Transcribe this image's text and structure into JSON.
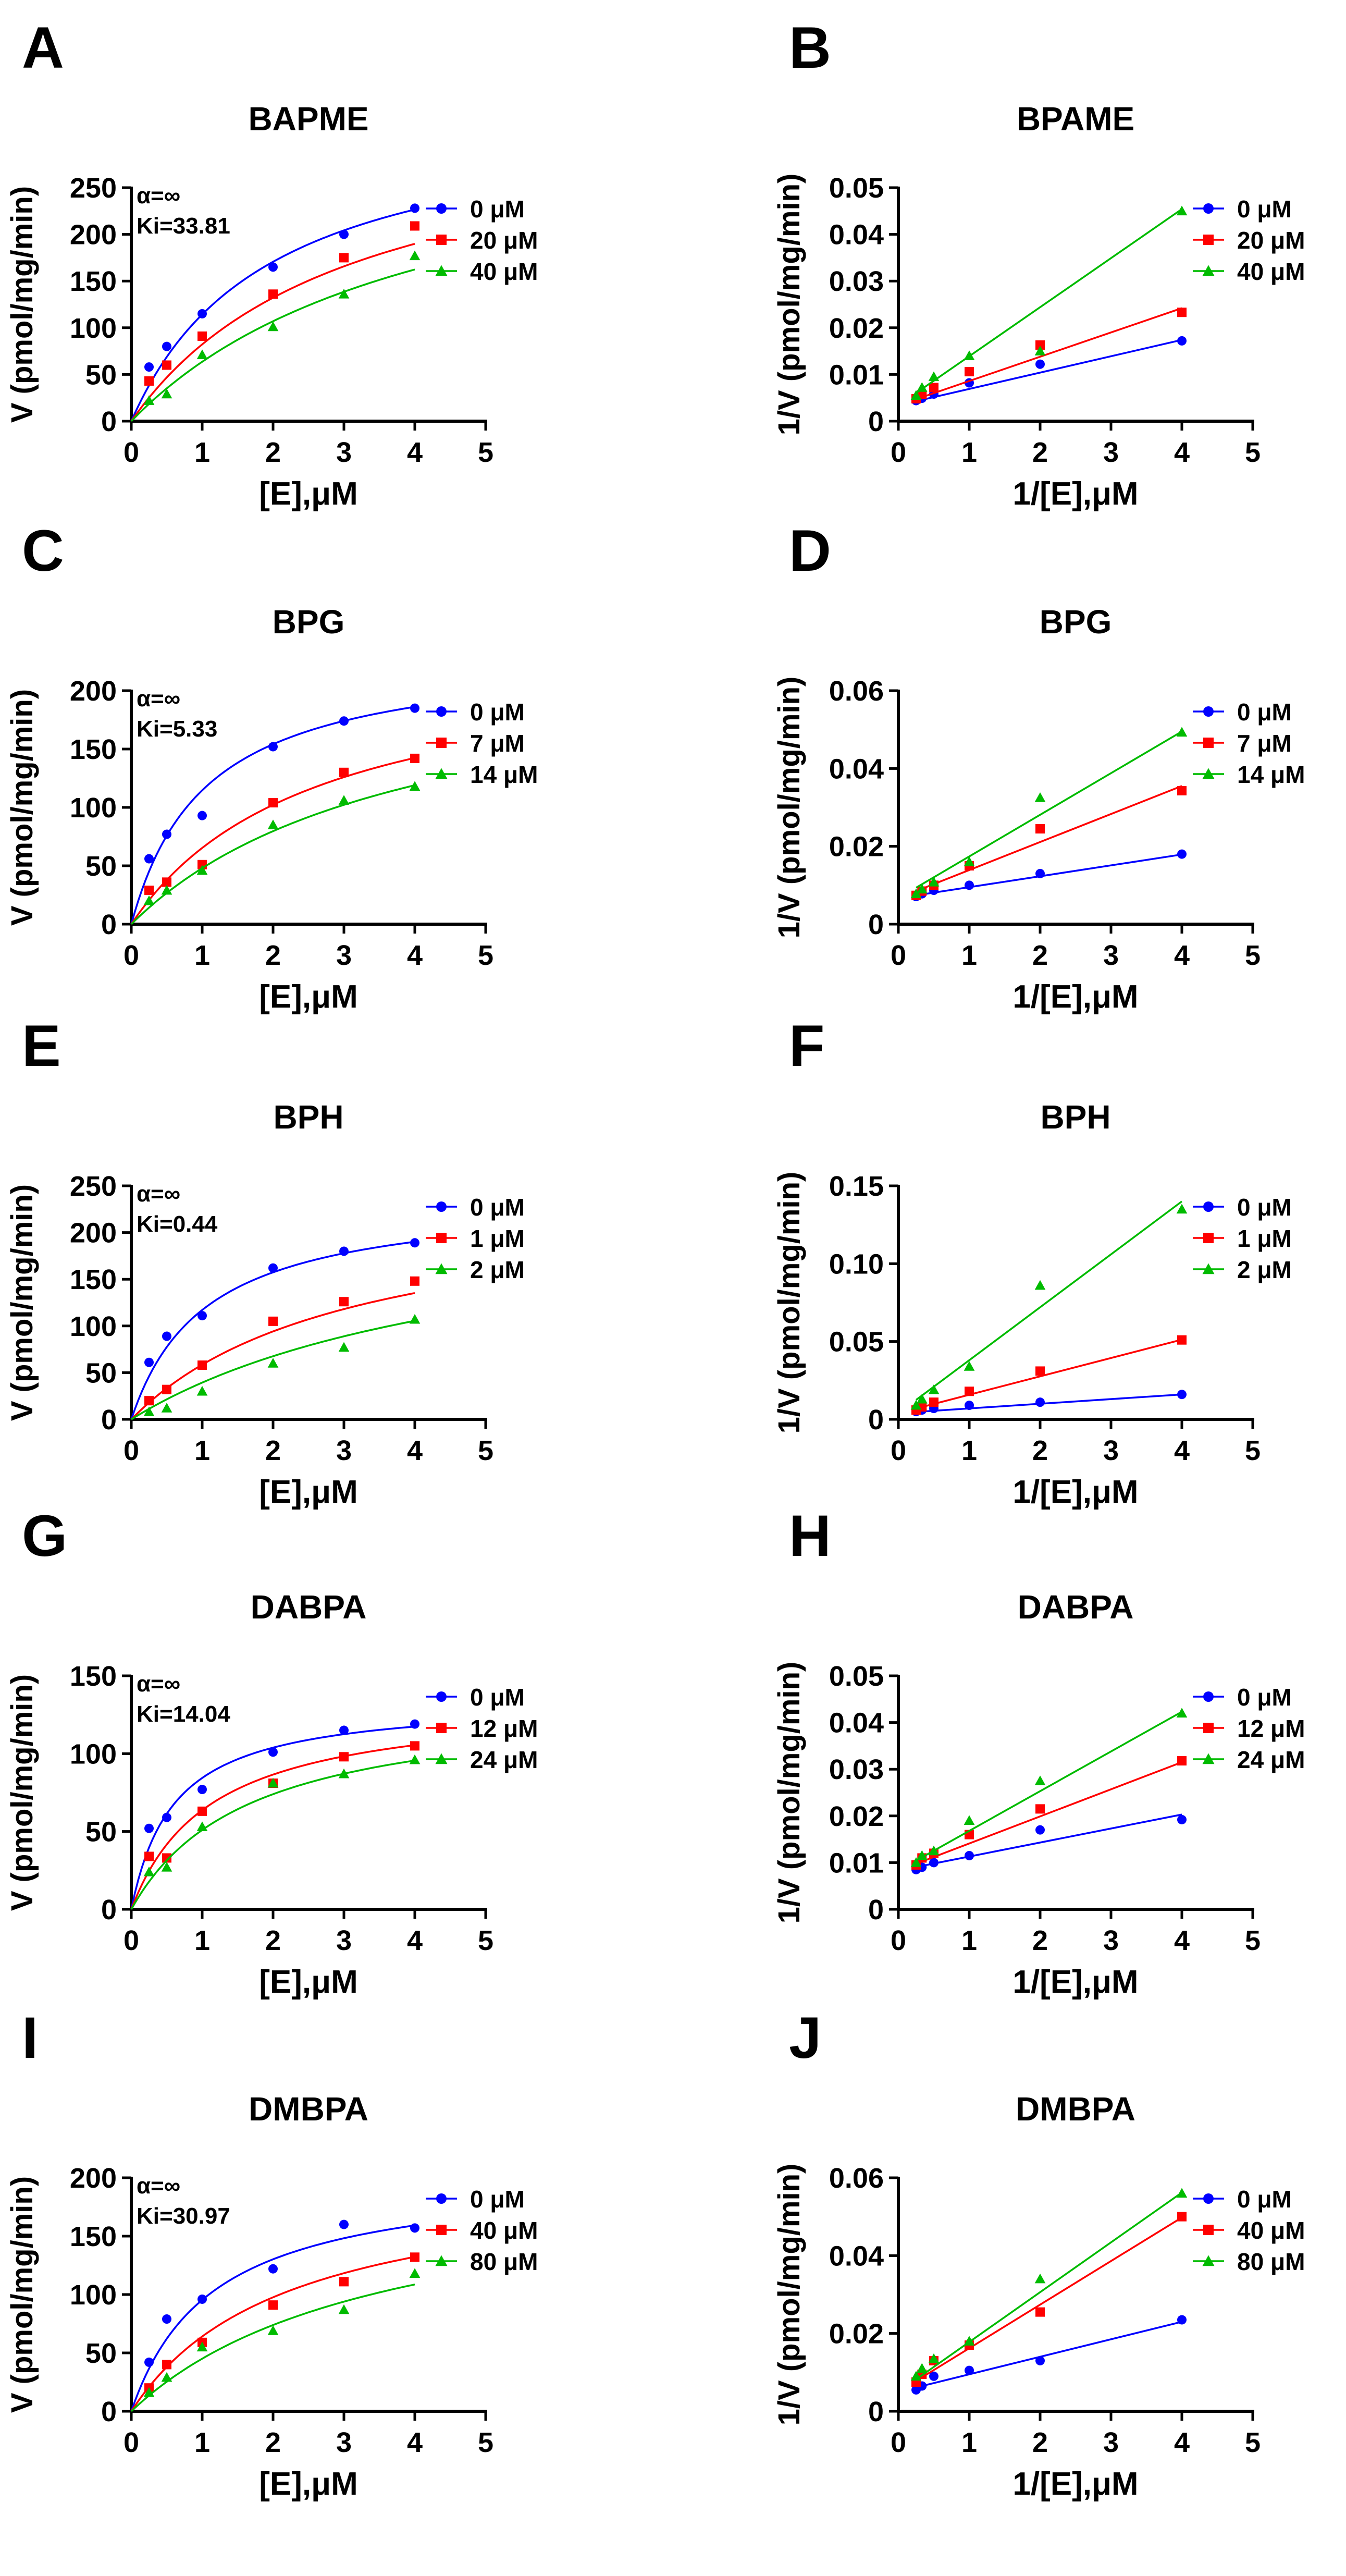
{
  "figure": {
    "caption": ""
  },
  "chart_data": [
    {
      "panel": "A",
      "type": "scatter",
      "title": "BAPME",
      "xlabel": "[E],μM",
      "ylabel": "V (pmol/mg/min)",
      "xlim": [
        0,
        5
      ],
      "ylim": [
        0,
        250
      ],
      "xticks": [
        0,
        1,
        2,
        3,
        4,
        5
      ],
      "yticks": [
        0,
        50,
        100,
        150,
        200,
        250
      ],
      "annotation": [
        "α=∞",
        "Ki=33.81"
      ],
      "legend_position": "top-right",
      "fit": "michaelis-menten",
      "x": [
        0.25,
        0.5,
        1,
        2,
        3,
        4
      ],
      "series": [
        {
          "name": "0 μM",
          "color": "#0000ff",
          "marker": "circle",
          "values": [
            58,
            80,
            115,
            165,
            200,
            228
          ],
          "fit": {
            "vmax": 337,
            "km": 1.95
          }
        },
        {
          "name": "20 μM",
          "color": "#ff0000",
          "marker": "square",
          "values": [
            43,
            60,
            91,
            136,
            175,
            209
          ],
          "fit": {
            "vmax": 337,
            "km": 3.1
          }
        },
        {
          "name": "40 μM",
          "color": "#00bb00",
          "marker": "triangle",
          "values": [
            22,
            29,
            71,
            101,
            136,
            177
          ],
          "fit": {
            "vmax": 337,
            "km": 4.3
          }
        }
      ]
    },
    {
      "panel": "B",
      "type": "scatter",
      "title": "BPAME",
      "xlabel": "1/[E],μM",
      "ylabel": "1/V (pmol/mg/min)",
      "xlim": [
        0,
        5
      ],
      "ylim": [
        0,
        0.05
      ],
      "xticks": [
        0,
        1,
        2,
        3,
        4,
        5
      ],
      "yticks": [
        0,
        0.01,
        0.02,
        0.03,
        0.04,
        0.05
      ],
      "legend_position": "top-right",
      "fit": "linear",
      "x": [
        0.25,
        0.333,
        0.5,
        1,
        2,
        4
      ],
      "series": [
        {
          "name": "0 μM",
          "color": "#0000ff",
          "marker": "circle",
          "values": [
            0.0044,
            0.0049,
            0.0058,
            0.0082,
            0.0122,
            0.0172
          ],
          "fit": {
            "slope": 0.0035,
            "intercept": 0.0034
          }
        },
        {
          "name": "20 μM",
          "color": "#ff0000",
          "marker": "square",
          "values": [
            0.0048,
            0.0057,
            0.0072,
            0.0106,
            0.0163,
            0.0233
          ],
          "fit": {
            "slope": 0.0052,
            "intercept": 0.0034
          }
        },
        {
          "name": "40 μM",
          "color": "#00bb00",
          "marker": "triangle",
          "values": [
            0.0055,
            0.0072,
            0.0095,
            0.014,
            0.015,
            0.045
          ],
          "fit": {
            "slope": 0.0105,
            "intercept": 0.0034
          }
        }
      ]
    },
    {
      "panel": "C",
      "type": "scatter",
      "title": "BPG",
      "xlabel": "[E],μM",
      "ylabel": "V (pmol/mg/min)",
      "xlim": [
        0,
        5
      ],
      "ylim": [
        0,
        200
      ],
      "xticks": [
        0,
        1,
        2,
        3,
        4,
        5
      ],
      "yticks": [
        0,
        50,
        100,
        150,
        200
      ],
      "annotation": [
        "α=∞",
        "Ki=5.33"
      ],
      "legend_position": "top-right",
      "fit": "michaelis-menten",
      "x": [
        0.25,
        0.5,
        1,
        2,
        3,
        4
      ],
      "series": [
        {
          "name": "0 μM",
          "color": "#0000ff",
          "marker": "circle",
          "values": [
            56,
            77,
            93,
            152,
            174,
            185
          ],
          "fit": {
            "vmax": 235,
            "km": 1.05
          }
        },
        {
          "name": "7 μM",
          "color": "#ff0000",
          "marker": "square",
          "values": [
            29,
            36,
            51,
            104,
            130,
            142
          ],
          "fit": {
            "vmax": 235,
            "km": 2.6
          }
        },
        {
          "name": "14 μM",
          "color": "#00bb00",
          "marker": "triangle",
          "values": [
            20,
            29,
            46,
            85,
            106,
            118
          ],
          "fit": {
            "vmax": 235,
            "km": 3.9
          }
        }
      ]
    },
    {
      "panel": "D",
      "type": "scatter",
      "title": "BPG",
      "xlabel": "1/[E],μM",
      "ylabel": "1/V (pmol/mg/min)",
      "xlim": [
        0,
        5
      ],
      "ylim": [
        0,
        0.06
      ],
      "xticks": [
        0,
        1,
        2,
        3,
        4,
        5
      ],
      "yticks": [
        0,
        0.02,
        0.04,
        0.06
      ],
      "legend_position": "top-right",
      "fit": "linear",
      "x": [
        0.25,
        0.333,
        0.5,
        1,
        2,
        4
      ],
      "series": [
        {
          "name": "0 μM",
          "color": "#0000ff",
          "marker": "circle",
          "values": [
            0.0071,
            0.0078,
            0.0087,
            0.01,
            0.013,
            0.018
          ],
          "fit": {
            "slope": 0.0028,
            "intercept": 0.0067
          }
        },
        {
          "name": "7 μM",
          "color": "#ff0000",
          "marker": "square",
          "values": [
            0.0074,
            0.0085,
            0.01,
            0.015,
            0.0245,
            0.0343
          ],
          "fit": {
            "slope": 0.0072,
            "intercept": 0.0067
          }
        },
        {
          "name": "14 μM",
          "color": "#00bb00",
          "marker": "triangle",
          "values": [
            0.0078,
            0.009,
            0.0108,
            0.016,
            0.0325,
            0.0493
          ],
          "fit": {
            "slope": 0.0107,
            "intercept": 0.0067
          }
        }
      ]
    },
    {
      "panel": "E",
      "type": "scatter",
      "title": "BPH",
      "xlabel": "[E],μM",
      "ylabel": "V (pmol/mg/min)",
      "xlim": [
        0,
        5
      ],
      "ylim": [
        0,
        250
      ],
      "xticks": [
        0,
        1,
        2,
        3,
        4,
        5
      ],
      "yticks": [
        0,
        50,
        100,
        150,
        200,
        250
      ],
      "annotation": [
        "α=∞",
        "Ki=0.44"
      ],
      "legend_position": "top-right",
      "fit": "michaelis-menten",
      "x": [
        0.25,
        0.5,
        1,
        2,
        3,
        4
      ],
      "series": [
        {
          "name": "0 μM",
          "color": "#0000ff",
          "marker": "circle",
          "values": [
            61,
            89,
            111,
            162,
            180,
            189
          ],
          "fit": {
            "vmax": 240,
            "km": 1.05
          }
        },
        {
          "name": "1 μM",
          "color": "#ff0000",
          "marker": "square",
          "values": [
            20,
            32,
            58,
            105,
            126,
            148
          ],
          "fit": {
            "vmax": 240,
            "km": 3.1
          }
        },
        {
          "name": "2 μM",
          "color": "#00bb00",
          "marker": "triangle",
          "values": [
            8,
            12,
            30,
            60,
            77,
            107
          ],
          "fit": {
            "vmax": 240,
            "km": 5.1
          }
        }
      ]
    },
    {
      "panel": "F",
      "type": "scatter",
      "title": "BPH",
      "xlabel": "1/[E],μM",
      "ylabel": "1/V (pmol/mg/min)",
      "xlim": [
        0,
        5
      ],
      "ylim": [
        0,
        0.15
      ],
      "xticks": [
        0,
        1,
        2,
        3,
        4,
        5
      ],
      "yticks": [
        0,
        0.05,
        0.1,
        0.15
      ],
      "legend_position": "top-right",
      "fit": "linear",
      "x": [
        0.25,
        0.333,
        0.5,
        1,
        2,
        4
      ],
      "series": [
        {
          "name": "0 μM",
          "color": "#0000ff",
          "marker": "circle",
          "values": [
            0.005,
            0.006,
            0.007,
            0.009,
            0.011,
            0.016
          ],
          "fit": {
            "slope": 0.003,
            "intercept": 0.004
          }
        },
        {
          "name": "1 μM",
          "color": "#ff0000",
          "marker": "square",
          "values": [
            0.006,
            0.008,
            0.011,
            0.018,
            0.031,
            0.051
          ],
          "fit": {
            "slope": 0.0118,
            "intercept": 0.004
          }
        },
        {
          "name": "2 μM",
          "color": "#00bb00",
          "marker": "triangle",
          "values": [
            0.009,
            0.013,
            0.019,
            0.034,
            0.086,
            0.135
          ],
          "fit": {
            "slope": 0.034,
            "intercept": 0.004
          }
        }
      ]
    },
    {
      "panel": "G",
      "type": "scatter",
      "title": "DABPA",
      "xlabel": "[E],μM",
      "ylabel": "V (pmol/mg/min)",
      "xlim": [
        0,
        5
      ],
      "ylim": [
        0,
        150
      ],
      "xticks": [
        0,
        1,
        2,
        3,
        4,
        5
      ],
      "yticks": [
        0,
        50,
        100,
        150
      ],
      "annotation": [
        "α=∞",
        "Ki=14.04"
      ],
      "legend_position": "top-right",
      "fit": "michaelis-menten",
      "x": [
        0.25,
        0.5,
        1,
        2,
        3,
        4
      ],
      "series": [
        {
          "name": "0 μM",
          "color": "#0000ff",
          "marker": "circle",
          "values": [
            52,
            59,
            77,
            101,
            115,
            119
          ],
          "fit": {
            "vmax": 135,
            "km": 0.6
          }
        },
        {
          "name": "12 μM",
          "color": "#ff0000",
          "marker": "square",
          "values": [
            34,
            33,
            63,
            81,
            98,
            105
          ],
          "fit": {
            "vmax": 135,
            "km": 1.12
          }
        },
        {
          "name": "24 μM",
          "color": "#00bb00",
          "marker": "triangle",
          "values": [
            24,
            27,
            53,
            81,
            87,
            96
          ],
          "fit": {
            "vmax": 135,
            "km": 1.65
          }
        }
      ]
    },
    {
      "panel": "H",
      "type": "scatter",
      "title": "DABPA",
      "xlabel": "1/[E],μM",
      "ylabel": "1/V (pmol/mg/min)",
      "xlim": [
        0,
        5
      ],
      "ylim": [
        0,
        0.05
      ],
      "xticks": [
        0,
        1,
        2,
        3,
        4,
        5
      ],
      "yticks": [
        0,
        0.01,
        0.02,
        0.03,
        0.04,
        0.05
      ],
      "legend_position": "top-right",
      "fit": "linear",
      "x": [
        0.25,
        0.333,
        0.5,
        1,
        2,
        4
      ],
      "series": [
        {
          "name": "0 μM",
          "color": "#0000ff",
          "marker": "circle",
          "values": [
            0.0085,
            0.009,
            0.01,
            0.0115,
            0.017,
            0.0192
          ],
          "fit": {
            "slope": 0.003,
            "intercept": 0.0083
          }
        },
        {
          "name": "12 μM",
          "color": "#ff0000",
          "marker": "square",
          "values": [
            0.0095,
            0.011,
            0.012,
            0.016,
            0.0215,
            0.0318
          ],
          "fit": {
            "slope": 0.0058,
            "intercept": 0.0083
          }
        },
        {
          "name": "24 μM",
          "color": "#00bb00",
          "marker": "triangle",
          "values": [
            0.01,
            0.0115,
            0.0125,
            0.019,
            0.0275,
            0.042
          ],
          "fit": {
            "slope": 0.0085,
            "intercept": 0.0083
          }
        }
      ]
    },
    {
      "panel": "I",
      "type": "scatter",
      "title": "DMBPA",
      "xlabel": "[E],μM",
      "ylabel": "V (pmol/mg/min)",
      "xlim": [
        0,
        5
      ],
      "ylim": [
        0,
        200
      ],
      "xticks": [
        0,
        1,
        2,
        3,
        4,
        5
      ],
      "yticks": [
        0,
        50,
        100,
        150,
        200
      ],
      "annotation": [
        "α=∞",
        "Ki=30.97"
      ],
      "legend_position": "top-right",
      "fit": "michaelis-menten",
      "x": [
        0.25,
        0.5,
        1,
        2,
        3,
        4
      ],
      "series": [
        {
          "name": "0 μM",
          "color": "#0000ff",
          "marker": "circle",
          "values": [
            42,
            79,
            96,
            122,
            160,
            157
          ],
          "fit": {
            "vmax": 205,
            "km": 1.15
          }
        },
        {
          "name": "40 μM",
          "color": "#ff0000",
          "marker": "square",
          "values": [
            20,
            40,
            59,
            91,
            111,
            132
          ],
          "fit": {
            "vmax": 205,
            "km": 2.2
          }
        },
        {
          "name": "80 μM",
          "color": "#00bb00",
          "marker": "triangle",
          "values": [
            16,
            29,
            55,
            69,
            87,
            118
          ],
          "fit": {
            "vmax": 205,
            "km": 3.55
          }
        }
      ]
    },
    {
      "panel": "J",
      "type": "scatter",
      "title": "DMBPA",
      "xlabel": "1/[E],μM",
      "ylabel": "1/V (pmol/mg/min)",
      "xlim": [
        0,
        5
      ],
      "ylim": [
        0,
        0.06
      ],
      "xticks": [
        0,
        1,
        2,
        3,
        4,
        5
      ],
      "yticks": [
        0,
        0.02,
        0.04,
        0.06
      ],
      "legend_position": "top-right",
      "fit": "linear",
      "x": [
        0.25,
        0.333,
        0.5,
        1,
        2,
        4
      ],
      "series": [
        {
          "name": "0 μM",
          "color": "#0000ff",
          "marker": "circle",
          "values": [
            0.0055,
            0.0065,
            0.009,
            0.0105,
            0.013,
            0.0235
          ],
          "fit": {
            "slope": 0.0045,
            "intercept": 0.005
          }
        },
        {
          "name": "40 μM",
          "color": "#ff0000",
          "marker": "square",
          "values": [
            0.0075,
            0.0095,
            0.013,
            0.017,
            0.0255,
            0.05
          ],
          "fit": {
            "slope": 0.0112,
            "intercept": 0.005
          }
        },
        {
          "name": "80 μM",
          "color": "#00bb00",
          "marker": "triangle",
          "values": [
            0.009,
            0.011,
            0.0135,
            0.018,
            0.034,
            0.056
          ],
          "fit": {
            "slope": 0.0128,
            "intercept": 0.005
          }
        }
      ]
    }
  ]
}
